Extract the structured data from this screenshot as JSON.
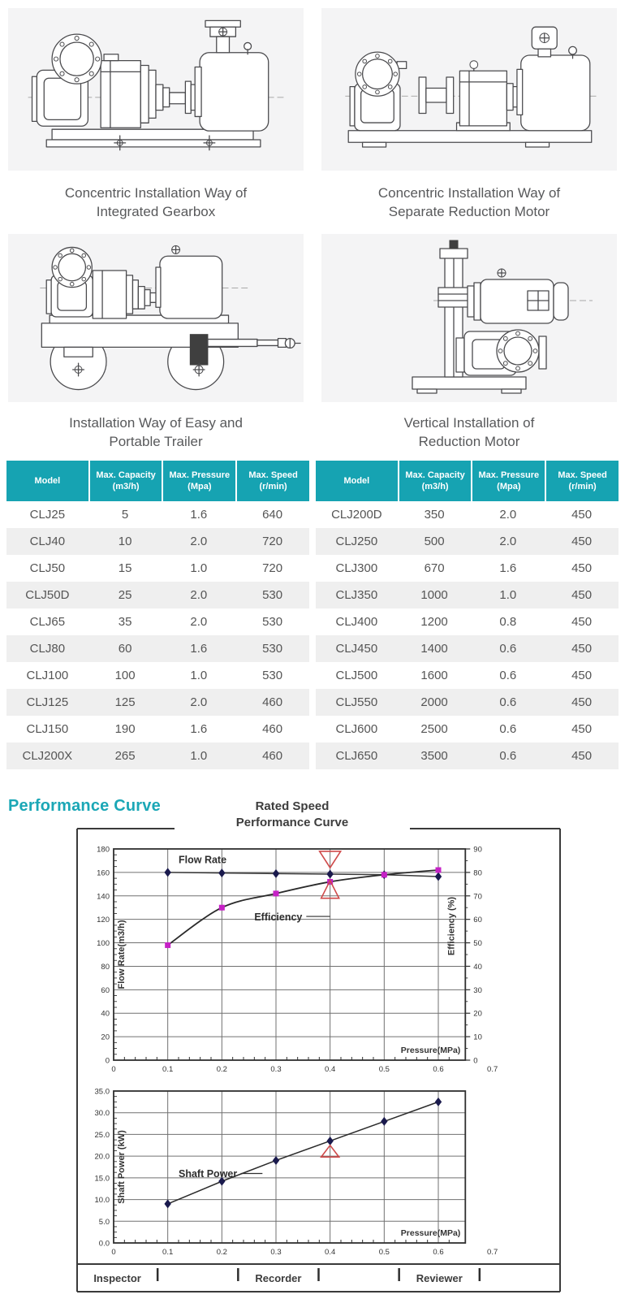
{
  "installation_figures": [
    {
      "name": "integrated-gearbox",
      "caption_line1": "Concentric Installation Way of",
      "caption_line2": "Integrated Gearbox"
    },
    {
      "name": "separate-reduction-motor",
      "caption_line1": "Concentric Installation Way of",
      "caption_line2": "Separate Reduction Motor"
    },
    {
      "name": "portable-trailer",
      "caption_line1": "Installation Way of Easy and",
      "caption_line2": "Portable Trailer"
    },
    {
      "name": "vertical-reduction-motor",
      "caption_line1": "Vertical Installation of",
      "caption_line2": "Reduction Motor"
    }
  ],
  "spec_tables": {
    "header_bg": "#16a3b2",
    "headers": [
      {
        "line1": "Model",
        "line2": ""
      },
      {
        "line1": "Max. Capacity",
        "line2": "(m3/h)"
      },
      {
        "line1": "Max. Pressure",
        "line2": "(Mpa)"
      },
      {
        "line1": "Max. Speed",
        "line2": "(r/min)"
      }
    ],
    "left_rows": [
      [
        "CLJ25",
        "5",
        "1.6",
        "640"
      ],
      [
        "CLJ40",
        "10",
        "2.0",
        "720"
      ],
      [
        "CLJ50",
        "15",
        "1.0",
        "720"
      ],
      [
        "CLJ50D",
        "25",
        "2.0",
        "530"
      ],
      [
        "CLJ65",
        "35",
        "2.0",
        "530"
      ],
      [
        "CLJ80",
        "60",
        "1.6",
        "530"
      ],
      [
        "CLJ100",
        "100",
        "1.0",
        "530"
      ],
      [
        "CLJ125",
        "125",
        "2.0",
        "460"
      ],
      [
        "CLJ150",
        "190",
        "1.6",
        "460"
      ],
      [
        "CLJ200X",
        "265",
        "1.0",
        "460"
      ]
    ],
    "right_rows": [
      [
        "CLJ200D",
        "350",
        "2.0",
        "450"
      ],
      [
        "CLJ250",
        "500",
        "2.0",
        "450"
      ],
      [
        "CLJ300",
        "670",
        "1.6",
        "450"
      ],
      [
        "CLJ350",
        "1000",
        "1.0",
        "450"
      ],
      [
        "CLJ400",
        "1200",
        "0.8",
        "450"
      ],
      [
        "CLJ450",
        "1400",
        "0.6",
        "450"
      ],
      [
        "CLJ500",
        "1600",
        "0.6",
        "450"
      ],
      [
        "CLJ550",
        "2000",
        "0.6",
        "450"
      ],
      [
        "CLJ600",
        "2500",
        "0.6",
        "450"
      ],
      [
        "CLJ650",
        "3500",
        "0.6",
        "450"
      ]
    ]
  },
  "performance_section": {
    "heading": "Performance Curve",
    "heading_color": "#1ba7b6",
    "title_line1": "Rated Speed",
    "title_line2": "Performance Curve",
    "footer_cells": [
      "Inspector",
      "",
      "Recorder",
      "",
      "Reviewer",
      ""
    ]
  },
  "chart_data": [
    {
      "type": "line",
      "title": "Rated Speed Performance Curve",
      "xlabel": "Pressure(MPa)",
      "x_ticks": [
        0,
        0.1,
        0.2,
        0.3,
        0.4,
        0.5,
        0.6,
        0.7
      ],
      "xlim": [
        0,
        0.65
      ],
      "grid": true,
      "left_axis": {
        "label": "Flow Rate(m3/h)",
        "min": 0,
        "max": 180,
        "step": 20,
        "decimals": 0
      },
      "right_axis": {
        "label": "Efficiency (%)",
        "min": 0,
        "max": 90,
        "step": 10,
        "decimals": 0
      },
      "x": [
        0.1,
        0.2,
        0.3,
        0.4,
        0.5,
        0.6
      ],
      "series": [
        {
          "name": "Flow Rate",
          "axis": "left",
          "marker": "diamond",
          "marker_color": "#1a1a4d",
          "line_color": "#3a3a3a",
          "smooth": false,
          "values": [
            160,
            159.5,
            159,
            158.5,
            158,
            156.5
          ]
        },
        {
          "name": "Efficiency",
          "axis": "right",
          "marker": "square",
          "marker_color": "#c621c6",
          "line_color": "#2a2a2a",
          "smooth": true,
          "values": [
            49,
            65,
            71,
            76,
            79,
            81
          ]
        }
      ],
      "annotations": {
        "color": "#cf4a4a",
        "items": [
          {
            "shape": "triangle-down",
            "x": 0.4,
            "y_top": 178,
            "y_apex": 164
          },
          {
            "shape": "triangle-up",
            "x": 0.4,
            "y_apex": 153,
            "y_base": 138
          }
        ]
      },
      "inner_labels": [
        {
          "text": "Flow Rate",
          "x": 0.12,
          "y": 168
        },
        {
          "text": "Efficiency",
          "x": 0.26,
          "y": 119,
          "dash": [
            0.356,
            122.5,
            0.4,
            122.5
          ]
        }
      ]
    },
    {
      "type": "line",
      "title": "",
      "xlabel": "Pressure(MPa)",
      "x_ticks": [
        0,
        0.1,
        0.2,
        0.3,
        0.4,
        0.5,
        0.6,
        0.7
      ],
      "xlim": [
        0,
        0.65
      ],
      "grid": true,
      "left_axis": {
        "label": "Shaft Power (kW)",
        "min": 0,
        "max": 35,
        "step": 5,
        "decimals": 1
      },
      "x": [
        0.1,
        0.2,
        0.3,
        0.4,
        0.5,
        0.6
      ],
      "series": [
        {
          "name": "Shaft Power",
          "axis": "left",
          "marker": "diamond",
          "marker_color": "#1a1a4d",
          "line_color": "#2a2a2a",
          "smooth": false,
          "values": [
            9,
            14.2,
            19,
            23.5,
            28,
            32.5
          ]
        }
      ],
      "annotations": {
        "color": "#cf4a4a",
        "items": [
          {
            "shape": "triangle-up",
            "x": 0.4,
            "y_apex": 22.5,
            "y_base": 19.8
          }
        ]
      },
      "inner_labels": [
        {
          "text": "Shaft Power",
          "x": 0.12,
          "y": 15.2,
          "dash": [
            0.235,
            16,
            0.275,
            16
          ]
        }
      ]
    }
  ]
}
